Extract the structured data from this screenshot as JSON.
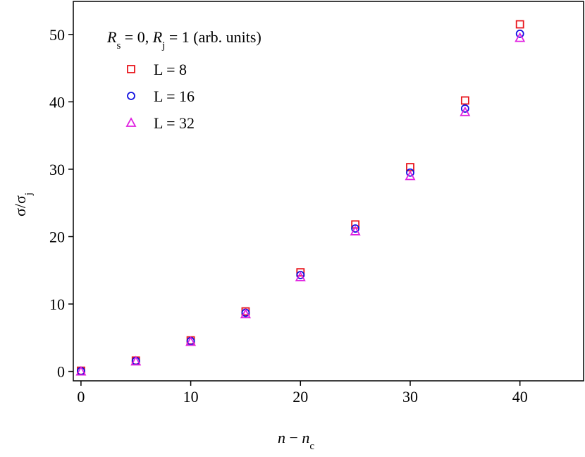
{
  "chart_data": {
    "type": "scatter",
    "annotation": [
      {
        "text": "R",
        "style": "italic"
      },
      {
        "text": "s",
        "style": "sub"
      },
      {
        "text": " = 0, ",
        "style": "normal"
      },
      {
        "text": "R",
        "style": "italic"
      },
      {
        "text": "j",
        "style": "sub"
      },
      {
        "text": " = 1 (arb. units)",
        "style": "normal"
      }
    ],
    "xlabel": [
      {
        "text": "n",
        "style": "italic"
      },
      {
        "text": " − ",
        "style": "normal"
      },
      {
        "text": "n",
        "style": "italic"
      },
      {
        "text": "c",
        "style": "sub"
      }
    ],
    "ylabel": [
      {
        "text": "σ/σ",
        "style": "normal"
      },
      {
        "text": "j",
        "style": "sub"
      }
    ],
    "x": [
      0,
      5,
      10,
      15,
      20,
      25,
      30,
      35,
      40
    ],
    "series": [
      {
        "name": "L = 8",
        "color": "#e8141b",
        "marker": "square",
        "values": [
          0.1,
          1.6,
          4.6,
          8.9,
          14.7,
          21.8,
          30.3,
          40.2,
          51.5
        ]
      },
      {
        "name": "L = 16",
        "color": "#1010e0",
        "marker": "circle",
        "values": [
          0.05,
          1.55,
          4.5,
          8.7,
          14.3,
          21.2,
          29.5,
          39.0,
          50.1
        ]
      },
      {
        "name": "L = 32",
        "color": "#e020e0",
        "marker": "triangle",
        "values": [
          0,
          1.5,
          4.4,
          8.5,
          14.0,
          20.8,
          29.0,
          38.5,
          49.5
        ]
      }
    ],
    "xlim": [
      -0.7,
      45.8
    ],
    "ylim": [
      -1.4,
      54.9
    ],
    "xticks": [
      0,
      10,
      20,
      30,
      40
    ],
    "yticks": [
      0,
      10,
      20,
      30,
      40,
      50
    ]
  }
}
